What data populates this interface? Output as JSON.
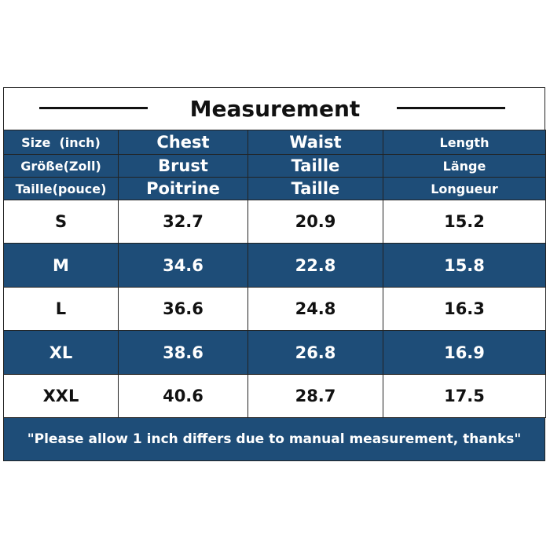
{
  "title": "Measurement",
  "header_rows": [
    [
      "Size  (inch)",
      "Chest",
      "Waist",
      "Length"
    ],
    [
      "Größe(Zoll)",
      "Brust",
      "Taille",
      "Länge"
    ],
    [
      "Taille(pouce)",
      "Poitrine",
      "Taille",
      "Longueur"
    ]
  ],
  "rows": [
    [
      "S",
      32.7,
      20.9,
      15.2
    ],
    [
      "M",
      34.6,
      22.8,
      15.8
    ],
    [
      "L",
      36.6,
      24.8,
      16.3
    ],
    [
      "XL",
      38.6,
      26.8,
      16.9
    ],
    [
      "XXL",
      40.6,
      28.7,
      17.5
    ]
  ],
  "note": "\"Please allow 1 inch differs due to manual measurement, thanks\""
}
